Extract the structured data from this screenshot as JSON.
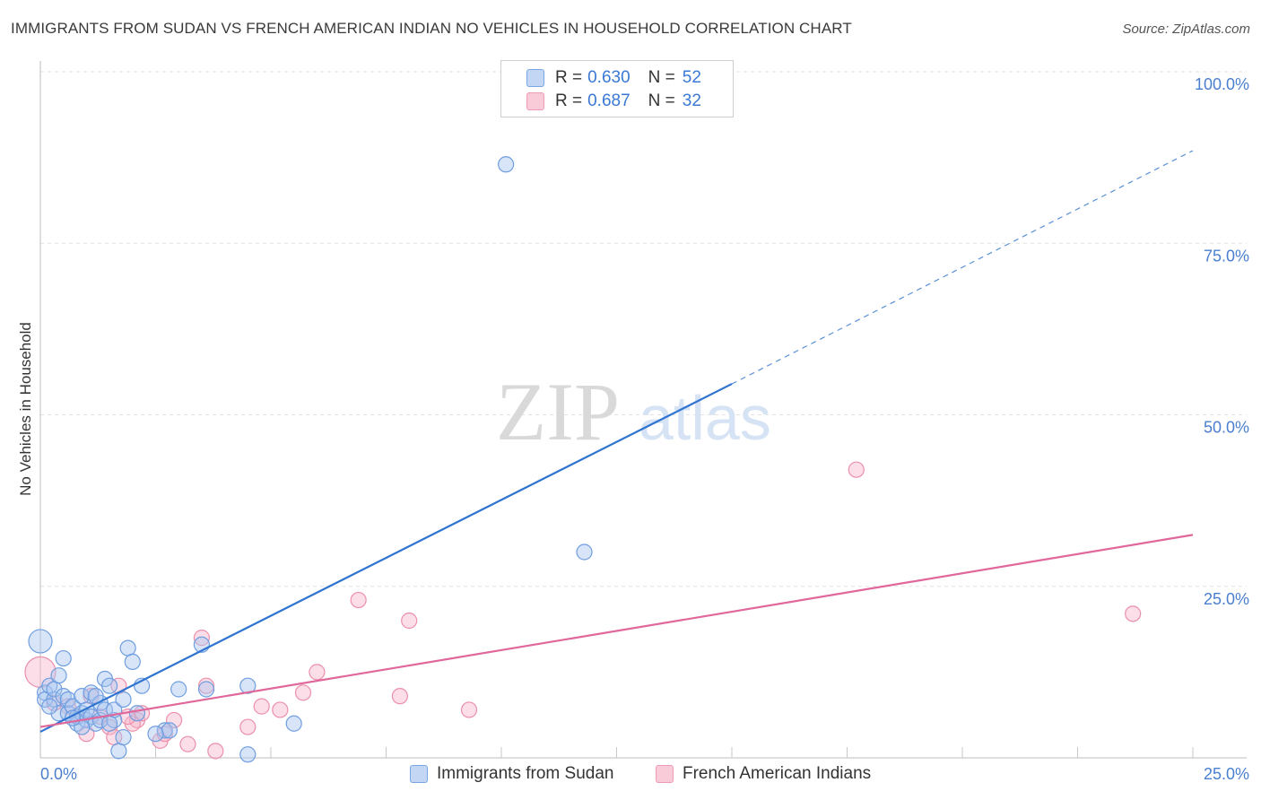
{
  "title": "IMMIGRANTS FROM SUDAN VS FRENCH AMERICAN INDIAN NO VEHICLES IN HOUSEHOLD CORRELATION CHART",
  "source": "Source: ZipAtlas.com",
  "legend": {
    "series1": {
      "r_label": "R =",
      "r_value": "0.630",
      "n_label": "N =",
      "n_value": "52"
    },
    "series2": {
      "r_label": "R =",
      "r_value": "0.687",
      "n_label": "N =",
      "n_value": "32"
    }
  },
  "watermark": {
    "zip": "ZIP",
    "atlas": "atlas"
  },
  "colors": {
    "blue_fill": "#a9c6f0",
    "blue_stroke": "#6f9ee0",
    "blue_line": "#2f74d0",
    "pink_fill": "#f6b6c9",
    "pink_stroke": "#ec8fab",
    "pink_line": "#e0679a"
  },
  "chart_data": {
    "type": "scatter",
    "title": "IMMIGRANTS FROM SUDAN VS FRENCH AMERICAN INDIAN NO VEHICLES IN HOUSEHOLD CORRELATION CHART",
    "xlabel": "",
    "ylabel": "No Vehicles in Household",
    "xlim": [
      0,
      25
    ],
    "ylim": [
      0,
      100
    ],
    "x_tick_labels": [
      "0.0%",
      "25.0%"
    ],
    "y_tick_labels": [
      "100.0%",
      "75.0%",
      "50.0%",
      "25.0%"
    ],
    "y_ticks": [
      100,
      75,
      50,
      25
    ],
    "series": [
      {
        "name": "Immigrants from Sudan",
        "r": 0.63,
        "n": 52,
        "trend": {
          "x0": 0,
          "y0": 3.8,
          "x1": 15,
          "y1": 54.5,
          "x_dash_end": 25,
          "y_dash_end": 88.5
        },
        "points": [
          [
            0.0,
            17.0
          ],
          [
            0.1,
            9.5
          ],
          [
            0.1,
            8.5
          ],
          [
            0.2,
            10.5
          ],
          [
            0.3,
            8.5
          ],
          [
            0.3,
            10.0
          ],
          [
            0.4,
            12.0
          ],
          [
            0.4,
            6.5
          ],
          [
            0.5,
            9.0
          ],
          [
            0.5,
            14.5
          ],
          [
            0.6,
            6.5
          ],
          [
            0.6,
            8.5
          ],
          [
            0.7,
            7.5
          ],
          [
            0.8,
            5.0
          ],
          [
            0.8,
            6.0
          ],
          [
            0.9,
            9.0
          ],
          [
            0.9,
            6.5
          ],
          [
            1.0,
            5.5
          ],
          [
            1.0,
            7.0
          ],
          [
            1.1,
            9.5
          ],
          [
            1.1,
            6.0
          ],
          [
            1.2,
            5.0
          ],
          [
            1.3,
            8.0
          ],
          [
            1.3,
            5.5
          ],
          [
            1.4,
            7.0
          ],
          [
            1.4,
            11.5
          ],
          [
            1.5,
            10.5
          ],
          [
            1.6,
            5.5
          ],
          [
            1.6,
            7.0
          ],
          [
            1.7,
            1.0
          ],
          [
            1.8,
            3.0
          ],
          [
            1.8,
            8.5
          ],
          [
            1.9,
            16.0
          ],
          [
            2.0,
            14.0
          ],
          [
            2.1,
            6.5
          ],
          [
            2.2,
            10.5
          ],
          [
            2.7,
            4.0
          ],
          [
            3.0,
            10.0
          ],
          [
            3.5,
            16.5
          ],
          [
            3.6,
            10.0
          ],
          [
            4.5,
            0.5
          ],
          [
            4.5,
            10.5
          ],
          [
            5.5,
            5.0
          ],
          [
            10.1,
            86.5
          ],
          [
            11.8,
            30.0
          ],
          [
            2.8,
            4.0
          ],
          [
            1.5,
            5.0
          ],
          [
            0.9,
            4.5
          ],
          [
            0.2,
            7.5
          ],
          [
            1.2,
            9.0
          ],
          [
            0.7,
            5.8
          ],
          [
            2.5,
            3.5
          ]
        ]
      },
      {
        "name": "French American Indians",
        "r": 0.687,
        "n": 32,
        "trend": {
          "x0": 0,
          "y0": 4.5,
          "x1": 25,
          "y1": 32.5
        },
        "points": [
          [
            0.0,
            12.5
          ],
          [
            0.3,
            8.0
          ],
          [
            0.6,
            7.5
          ],
          [
            0.8,
            6.0
          ],
          [
            1.0,
            3.5
          ],
          [
            1.1,
            9.0
          ],
          [
            1.3,
            6.0
          ],
          [
            1.5,
            4.5
          ],
          [
            1.6,
            3.0
          ],
          [
            1.7,
            10.5
          ],
          [
            2.1,
            5.5
          ],
          [
            2.2,
            6.5
          ],
          [
            2.6,
            2.5
          ],
          [
            2.7,
            3.5
          ],
          [
            2.9,
            5.5
          ],
          [
            3.2,
            2.0
          ],
          [
            3.5,
            17.5
          ],
          [
            3.6,
            10.5
          ],
          [
            3.8,
            1.0
          ],
          [
            4.5,
            4.5
          ],
          [
            4.8,
            7.5
          ],
          [
            5.2,
            7.0
          ],
          [
            5.7,
            9.5
          ],
          [
            6.0,
            12.5
          ],
          [
            6.9,
            23.0
          ],
          [
            7.8,
            9.0
          ],
          [
            8.0,
            20.0
          ],
          [
            9.3,
            7.0
          ],
          [
            17.7,
            42.0
          ],
          [
            23.7,
            21.0
          ],
          [
            2.0,
            5.0
          ],
          [
            1.9,
            6.0
          ]
        ]
      }
    ]
  },
  "bottom_legend": [
    "Immigrants from Sudan",
    "French American Indians"
  ]
}
